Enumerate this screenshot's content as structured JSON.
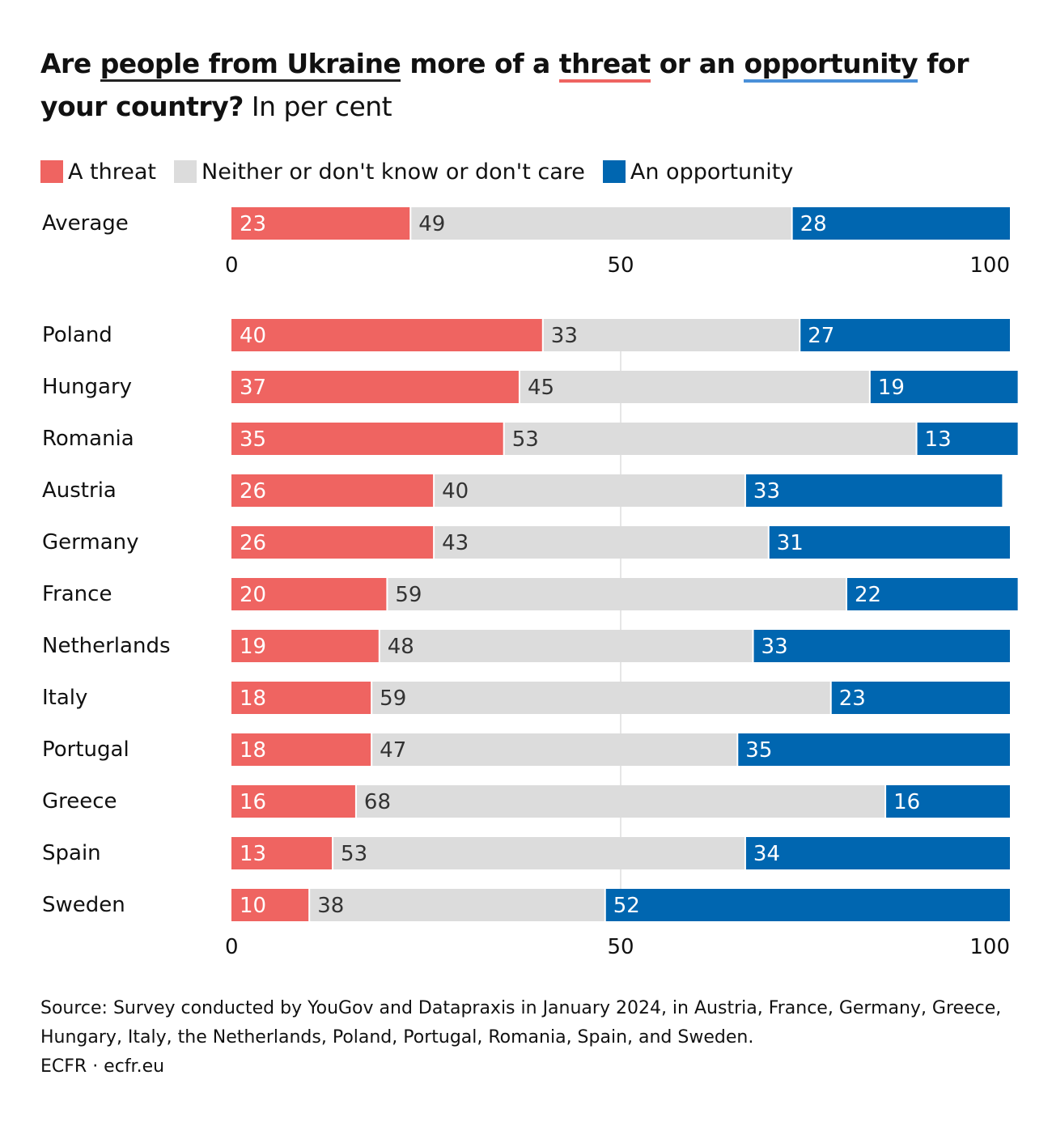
{
  "title": {
    "p1": "Are ",
    "u1": "people from Ukraine",
    "p2": " more of a ",
    "u2": "threat",
    "p3": " or an ",
    "u3": "opportunity",
    "p4": " for your country?",
    "sub": " In per cent"
  },
  "colors": {
    "threat": "#ef6461",
    "neither": "#dcdcdc",
    "opportunity": "#0066b0",
    "grid": "#e6e6e6"
  },
  "chart_data": {
    "type": "bar",
    "orientation": "horizontal",
    "stacked": true,
    "xlim": [
      0,
      100
    ],
    "xticks": [
      0,
      50,
      100
    ],
    "legend_position": "top-left",
    "series": [
      {
        "name": "A threat",
        "key": "threat"
      },
      {
        "name": "Neither or don't know or don't care",
        "key": "neither"
      },
      {
        "name": "An opportunity",
        "key": "opportunity"
      }
    ],
    "average": {
      "category": "Average",
      "values": [
        23,
        49,
        28
      ]
    },
    "categories": [
      "Poland",
      "Hungary",
      "Romania",
      "Austria",
      "Germany",
      "France",
      "Netherlands",
      "Italy",
      "Portugal",
      "Greece",
      "Spain",
      "Sweden"
    ],
    "values": [
      [
        40,
        33,
        27
      ],
      [
        37,
        45,
        19
      ],
      [
        35,
        53,
        13
      ],
      [
        26,
        40,
        33
      ],
      [
        26,
        43,
        31
      ],
      [
        20,
        59,
        22
      ],
      [
        19,
        48,
        33
      ],
      [
        18,
        59,
        23
      ],
      [
        18,
        47,
        35
      ],
      [
        16,
        68,
        16
      ],
      [
        13,
        53,
        34
      ],
      [
        10,
        38,
        52
      ]
    ]
  },
  "source": {
    "line1": "Source: Survey conducted by YouGov and Datapraxis in January 2024, in Austria, France, Germany, Greece,",
    "line2": "Hungary, Italy, the Netherlands, Poland, Portugal, Romania, Spain, and Sweden.",
    "line3": "ECFR · ecfr.eu"
  }
}
